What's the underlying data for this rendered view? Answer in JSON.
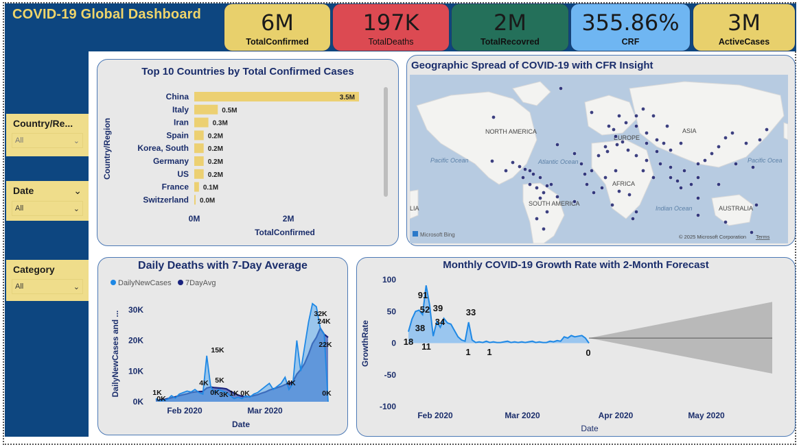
{
  "dashboard": {
    "title": "COVID-19 Global Dashboard"
  },
  "kpis": [
    {
      "value": "6M",
      "label": "TotalConfirmed",
      "color": "#e8d06c"
    },
    {
      "value": "197K",
      "label": "TotalDeaths",
      "color": "#dc4a52"
    },
    {
      "value": "2M",
      "label": "TotalRecovred",
      "color": "#24705a"
    },
    {
      "value": "355.86%",
      "label": "CRF",
      "color": "#6fb6f2"
    },
    {
      "value": "3M",
      "label": "ActiveCases",
      "color": "#e8d06c"
    }
  ],
  "slicers": [
    {
      "label": "Country/Re...",
      "value": "All"
    },
    {
      "label": "Date",
      "value": "All"
    },
    {
      "label": "Category",
      "value": "All"
    }
  ],
  "bar_panel": {
    "title": "Top 10 Countries by Total Confirmed Cases",
    "chart_data": {
      "type": "bar",
      "orientation": "horizontal",
      "title": "Top 10 Countries by Total Confirmed Cases",
      "xlabel": "TotalConfirmed",
      "ylabel": "Country/Region",
      "categories": [
        "China",
        "Italy",
        "Iran",
        "Spain",
        "Korea, South",
        "Germany",
        "US",
        "France",
        "Switzerland"
      ],
      "values": [
        3.5,
        0.5,
        0.3,
        0.2,
        0.2,
        0.2,
        0.2,
        0.1,
        0.0
      ],
      "data_labels": [
        "3.5M",
        "0.5M",
        "0.3M",
        "0.2M",
        "0.2M",
        "0.2M",
        "0.2M",
        "0.1M",
        "0.0M"
      ],
      "xticks": [
        "0M",
        "2M"
      ],
      "xlim": [
        0,
        3.5
      ],
      "bar_color": "#ecd072"
    }
  },
  "map_panel": {
    "title": "Geographic Spread of COVID-19 with CFR Insight",
    "labels": {
      "north_america": "NORTH AMERICA",
      "south_america": "SOUTH AMERICA",
      "asia": "ASIA",
      "africa": "AFRICA",
      "europe": "EUROPE",
      "australia": "AUSTRALIA",
      "pacific_left": "Pacific Ocean",
      "atlantic": "Atlantic Ocean",
      "indian": "Indian Ocean",
      "pacific_right": "Pacific Ocea",
      "lia": "LIA"
    },
    "attribution": "Microsoft Bing",
    "copyright": "© 2025 Microsoft Corporation",
    "terms": "Terms",
    "marker_color": "#1b1f6b"
  },
  "deaths_panel": {
    "title": "Daily Deaths with 7-Day Average",
    "legend": [
      "DailyNewCases",
      "7DayAvg"
    ],
    "chart_data": {
      "type": "area",
      "title": "Daily Deaths with 7-Day Average",
      "xlabel": "Date",
      "ylabel": "DailyNewCases and ...",
      "yticks": [
        "0K",
        "10K",
        "20K",
        "30K"
      ],
      "xticks": [
        "Feb 2020",
        "Mar 2020"
      ],
      "ylim": [
        0,
        34
      ],
      "series": [
        {
          "name": "DailyNewCases",
          "color": "#1e88e5",
          "values": [
            1,
            0.3,
            0.5,
            0.8,
            2,
            1.2,
            2.5,
            3,
            3.5,
            3.2,
            4,
            3,
            2.5,
            15,
            5,
            3,
            4,
            3.5,
            3,
            2,
            1,
            1.5,
            1,
            2,
            1.5,
            2.5,
            3,
            4,
            5,
            6,
            4,
            5,
            6,
            8,
            4,
            6,
            20,
            10,
            18,
            26,
            32,
            31,
            24,
            22,
            0
          ]
        },
        {
          "name": "7DayAvg",
          "color": "#1a237e",
          "values": [
            0.5,
            0.6,
            0.7,
            1,
            1.3,
            1.6,
            2,
            2.3,
            2.6,
            3,
            3.2,
            3.3,
            3.4,
            4.5,
            4.8,
            4.6,
            4.5,
            4.4,
            4.2,
            3.5,
            2.8,
            2.2,
            1.8,
            1.6,
            1.7,
            2,
            2.3,
            2.8,
            3.2,
            3.8,
            4.2,
            4.6,
            5,
            5.6,
            6,
            6.5,
            9,
            10.5,
            12.5,
            15.5,
            19,
            21,
            24,
            22,
            21
          ]
        }
      ],
      "data_labels": [
        "1K",
        "0K",
        "4K",
        "0K",
        "15K",
        "5K",
        "3K",
        "1K",
        "0K",
        "4K",
        "32K",
        "24K",
        "22K",
        "0K"
      ]
    }
  },
  "growth_panel": {
    "title": "Monthly COVID-19 Growth Rate with 2-Month Forecast",
    "chart_data": {
      "type": "area",
      "title": "Monthly COVID-19 Growth Rate with 2-Month Forecast",
      "xlabel": "Date",
      "ylabel": "GrowthRate",
      "yticks": [
        "100",
        "50",
        "0",
        "-50",
        "-100"
      ],
      "ylim": [
        -100,
        100
      ],
      "xticks": [
        "Feb 2020",
        "Mar 2020",
        "Apr 2020",
        "May 2020"
      ],
      "series": [
        {
          "name": "GrowthRate",
          "color": "#1e88e5",
          "values": [
            18,
            38,
            50,
            52,
            45,
            91,
            60,
            11,
            34,
            25,
            39,
            32,
            30,
            20,
            10,
            5,
            3,
            33,
            5,
            1,
            2,
            1,
            3,
            1,
            2,
            1,
            1,
            2,
            3,
            1,
            2,
            1,
            2,
            1,
            2,
            3,
            1,
            2,
            1,
            1,
            3,
            2,
            4,
            3,
            10,
            8,
            12,
            10,
            11,
            12,
            8,
            0
          ]
        }
      ],
      "data_labels": [
        "18",
        "38",
        "52",
        "91",
        "11",
        "39",
        "34",
        "33",
        "1",
        "1",
        "0"
      ],
      "forecast": {
        "range": [
          "Apr 2020",
          "May 2020"
        ],
        "upper_end": 65,
        "lower_end": -48,
        "center": 8
      }
    }
  }
}
